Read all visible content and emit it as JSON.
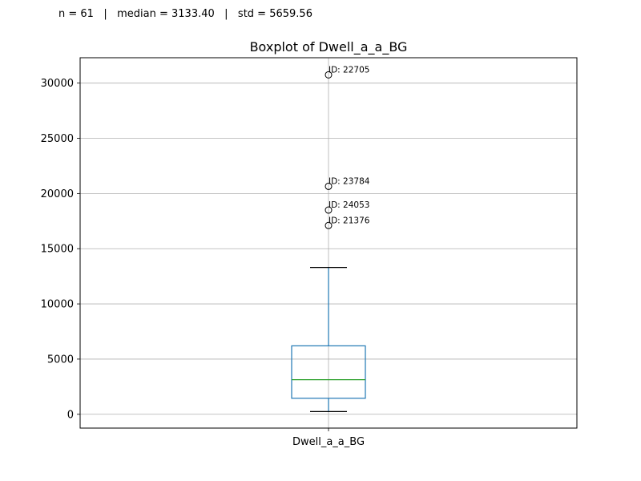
{
  "stats_text": "n = 61   |   median = 3133.40   |   std = 5659.56",
  "chart_data": {
    "type": "box",
    "title": "Boxplot of Dwell_a_a_BG",
    "xlabel": "",
    "ylabel": "",
    "categories": [
      "Dwell_a_a_BG"
    ],
    "ylim": [
      -1250,
      32300
    ],
    "yticks": [
      0,
      5000,
      10000,
      15000,
      20000,
      25000,
      30000
    ],
    "grid": true,
    "box": {
      "whisker_low": 250,
      "q1": 1450,
      "median": 3133.4,
      "q3": 6200,
      "whisker_high": 13300
    },
    "outliers": [
      {
        "value": 30750,
        "label": "ID: 22705"
      },
      {
        "value": 20650,
        "label": "ID: 23784"
      },
      {
        "value": 18500,
        "label": "ID: 24053"
      },
      {
        "value": 17100,
        "label": "ID: 21376"
      }
    ],
    "colors": {
      "box": "#1f77b4",
      "median": "#2ca02c",
      "whisker_cap": "#000000",
      "grid": "#b0b0b0"
    }
  }
}
